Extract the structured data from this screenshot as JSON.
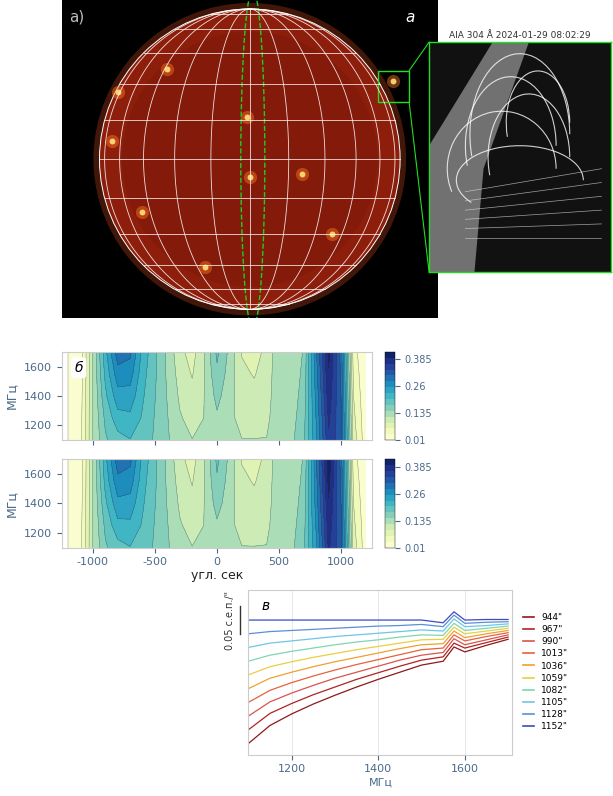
{
  "image_panel": {
    "labels": [
      "а)",
      "a"
    ],
    "inset_title": "AIA 304 Å 2024-01-29 08:02:29"
  },
  "chart_data": [
    {
      "type": "contour",
      "annotations": [
        "б"
      ],
      "ylabel": "МГц",
      "tick_labels": "y",
      "x": [
        -1200,
        -1100,
        -1000,
        -900,
        -800,
        -700,
        -600,
        -500,
        -400,
        -300,
        -200,
        -100,
        0,
        100,
        200,
        300,
        400,
        500,
        600,
        700,
        800,
        900,
        1000,
        1100,
        1200
      ],
      "y": [
        1100,
        1250,
        1400,
        1550,
        1700
      ],
      "cells": [
        [
          0.01,
          0.03,
          0.12,
          0.17,
          0.19,
          0.2,
          0.19,
          0.17,
          0.15,
          0.13,
          0.12,
          0.12,
          0.13,
          0.12,
          0.12,
          0.12,
          0.12,
          0.13,
          0.14,
          0.17,
          0.25,
          0.36,
          0.32,
          0.08,
          0.02
        ],
        [
          0.01,
          0.028,
          0.12,
          0.18,
          0.218,
          0.222,
          0.198,
          0.172,
          0.148,
          0.122,
          0.11,
          0.12,
          0.142,
          0.125,
          0.112,
          0.11,
          0.115,
          0.132,
          0.135,
          0.165,
          0.258,
          0.37,
          0.315,
          0.072,
          0.018
        ],
        [
          0.01,
          0.025,
          0.12,
          0.195,
          0.245,
          0.245,
          0.205,
          0.175,
          0.145,
          0.115,
          0.1,
          0.12,
          0.155,
          0.13,
          0.105,
          0.1,
          0.11,
          0.135,
          0.13,
          0.16,
          0.265,
          0.38,
          0.31,
          0.065,
          0.015
        ],
        [
          0.01,
          0.022,
          0.12,
          0.208,
          0.272,
          0.268,
          0.212,
          0.178,
          0.142,
          0.108,
          0.09,
          0.12,
          0.168,
          0.135,
          0.098,
          0.09,
          0.105,
          0.138,
          0.125,
          0.155,
          0.272,
          0.39,
          0.305,
          0.058,
          0.012
        ],
        [
          0.01,
          0.02,
          0.12,
          0.22,
          0.3,
          0.29,
          0.22,
          0.18,
          0.14,
          0.1,
          0.08,
          0.12,
          0.18,
          0.14,
          0.09,
          0.08,
          0.1,
          0.14,
          0.12,
          0.15,
          0.28,
          0.4,
          0.3,
          0.05,
          0.01
        ]
      ],
      "xlim": [
        -1250,
        1250
      ],
      "xticks": [
        -1000,
        -500,
        0,
        500,
        1000
      ],
      "ylim": [
        1100,
        1700
      ],
      "yticks": [
        1200,
        1400,
        1600
      ],
      "colorbar": {
        "range": [
          0.01,
          0.42
        ],
        "ticks": [
          0.01,
          0.135,
          0.26,
          0.385
        ]
      }
    },
    {
      "type": "contour",
      "ylabel": "МГц",
      "xlabel": "угл. сек",
      "x": [
        -1200,
        -1100,
        -1000,
        -900,
        -800,
        -700,
        -600,
        -500,
        -400,
        -300,
        -200,
        -100,
        0,
        100,
        200,
        300,
        400,
        500,
        600,
        700,
        800,
        900,
        1000,
        1100,
        1200
      ],
      "y": [
        1100,
        1250,
        1400,
        1550,
        1700
      ],
      "cells": [
        [
          0.01,
          0.03,
          0.12,
          0.17,
          0.19,
          0.2,
          0.19,
          0.17,
          0.15,
          0.13,
          0.12,
          0.12,
          0.13,
          0.12,
          0.12,
          0.12,
          0.12,
          0.13,
          0.14,
          0.17,
          0.25,
          0.37,
          0.32,
          0.08,
          0.02
        ],
        [
          0.01,
          0.028,
          0.12,
          0.18,
          0.22,
          0.222,
          0.198,
          0.172,
          0.148,
          0.122,
          0.11,
          0.12,
          0.142,
          0.125,
          0.112,
          0.11,
          0.115,
          0.132,
          0.135,
          0.165,
          0.26,
          0.38,
          0.315,
          0.072,
          0.018
        ],
        [
          0.01,
          0.025,
          0.12,
          0.195,
          0.248,
          0.245,
          0.205,
          0.175,
          0.145,
          0.115,
          0.1,
          0.12,
          0.158,
          0.13,
          0.105,
          0.1,
          0.11,
          0.135,
          0.13,
          0.16,
          0.268,
          0.39,
          0.31,
          0.065,
          0.015
        ],
        [
          0.01,
          0.022,
          0.12,
          0.21,
          0.275,
          0.27,
          0.212,
          0.178,
          0.142,
          0.108,
          0.09,
          0.12,
          0.17,
          0.135,
          0.098,
          0.09,
          0.105,
          0.138,
          0.125,
          0.155,
          0.275,
          0.4,
          0.305,
          0.058,
          0.012
        ],
        [
          0.01,
          0.02,
          0.12,
          0.22,
          0.3,
          0.29,
          0.22,
          0.18,
          0.14,
          0.1,
          0.08,
          0.12,
          0.18,
          0.14,
          0.09,
          0.08,
          0.1,
          0.14,
          0.12,
          0.15,
          0.28,
          0.41,
          0.3,
          0.05,
          0.01
        ]
      ],
      "xlim": [
        -1250,
        1250
      ],
      "xticks": [
        -1000,
        -500,
        0,
        500,
        1000
      ],
      "ylim": [
        1100,
        1700
      ],
      "yticks": [
        1200,
        1400,
        1600
      ],
      "colorbar": {
        "range": [
          0.01,
          0.42
        ],
        "ticks": [
          0.01,
          0.135,
          0.26,
          0.385
        ]
      }
    },
    {
      "type": "line",
      "annotations": [
        "в"
      ],
      "xlabel": "МГц",
      "tick_labels": "x",
      "grid": true,
      "legend": "right",
      "scale_bar": {
        "value": 0.05,
        "label": "0.05 с.е.п./\""
      },
      "x": [
        1100,
        1150,
        1200,
        1250,
        1300,
        1350,
        1400,
        1450,
        1500,
        1550,
        1575,
        1600,
        1650,
        1700
      ],
      "xlim": [
        1100,
        1710
      ],
      "xticks": [
        1200,
        1400,
        1600
      ],
      "ylim": [
        0,
        0.3
      ],
      "series": [
        {
          "name": "944\"",
          "color": "#8b1a1a",
          "values": [
            0.02,
            0.053,
            0.074,
            0.092,
            0.108,
            0.123,
            0.137,
            0.15,
            0.163,
            0.17,
            0.196,
            0.187,
            0.199,
            0.21
          ]
        },
        {
          "name": "967\"",
          "color": "#b22222",
          "values": [
            0.045,
            0.075,
            0.093,
            0.109,
            0.123,
            0.137,
            0.149,
            0.161,
            0.172,
            0.178,
            0.203,
            0.194,
            0.204,
            0.214
          ]
        },
        {
          "name": "990\"",
          "color": "#d9534f",
          "values": [
            0.07,
            0.096,
            0.112,
            0.126,
            0.139,
            0.15,
            0.161,
            0.172,
            0.181,
            0.186,
            0.211,
            0.2,
            0.209,
            0.218
          ]
        },
        {
          "name": "1013\"",
          "color": "#e8613c",
          "values": [
            0.095,
            0.117,
            0.131,
            0.143,
            0.154,
            0.164,
            0.173,
            0.182,
            0.191,
            0.194,
            0.218,
            0.207,
            0.215,
            0.222
          ]
        },
        {
          "name": "1036\"",
          "color": "#f0a030",
          "values": [
            0.12,
            0.139,
            0.15,
            0.16,
            0.169,
            0.177,
            0.185,
            0.193,
            0.2,
            0.202,
            0.225,
            0.213,
            0.22,
            0.226
          ]
        },
        {
          "name": "1059\"",
          "color": "#e8d040",
          "values": [
            0.145,
            0.16,
            0.169,
            0.177,
            0.184,
            0.191,
            0.197,
            0.203,
            0.209,
            0.21,
            0.232,
            0.22,
            0.225,
            0.23
          ]
        },
        {
          "name": "1082\"",
          "color": "#7fd6b0",
          "values": [
            0.17,
            0.181,
            0.188,
            0.194,
            0.2,
            0.205,
            0.209,
            0.214,
            0.218,
            0.217,
            0.239,
            0.226,
            0.23,
            0.234
          ]
        },
        {
          "name": "1105\"",
          "color": "#6ec6e6",
          "values": [
            0.195,
            0.203,
            0.207,
            0.211,
            0.215,
            0.218,
            0.221,
            0.224,
            0.227,
            0.225,
            0.247,
            0.233,
            0.235,
            0.238
          ]
        },
        {
          "name": "1128\"",
          "color": "#5b8fd6",
          "values": [
            0.22,
            0.224,
            0.226,
            0.228,
            0.23,
            0.232,
            0.234,
            0.235,
            0.237,
            0.233,
            0.254,
            0.239,
            0.241,
            0.242
          ]
        },
        {
          "name": "1152\"",
          "color": "#3b4cc0",
          "values": [
            0.245,
            0.245,
            0.245,
            0.245,
            0.245,
            0.245,
            0.245,
            0.245,
            0.245,
            0.24,
            0.26,
            0.245,
            0.246,
            0.246
          ]
        }
      ]
    }
  ]
}
